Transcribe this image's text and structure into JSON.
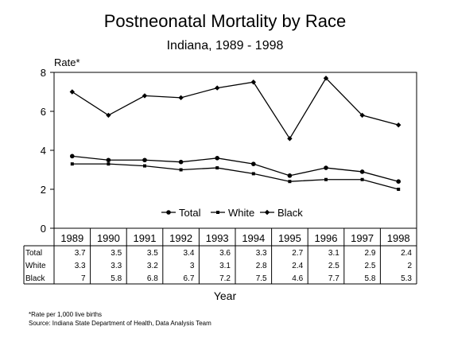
{
  "chart_data": {
    "type": "line",
    "title": "Postneonatal Mortality by Race",
    "subtitle": "Indiana, 1989 - 1998",
    "ylabel": "Rate*",
    "xlabel": "Year",
    "ylim": [
      0,
      8
    ],
    "yticks": [
      0,
      2,
      4,
      6,
      8
    ],
    "grid": false,
    "legend_placement": "bottom-center",
    "categories": [
      "1989",
      "1990",
      "1991",
      "1992",
      "1993",
      "1994",
      "1995",
      "1996",
      "1997",
      "1998"
    ],
    "series": [
      {
        "name": "Total",
        "marker": "circle",
        "values": [
          3.7,
          3.5,
          3.5,
          3.4,
          3.6,
          3.3,
          2.7,
          3.1,
          2.9,
          2.4
        ],
        "labels": [
          "3.7",
          "3.5",
          "3.5",
          "3.4",
          "3.6",
          "3.3",
          "2.7",
          "3.1",
          "2.9",
          "2.4"
        ]
      },
      {
        "name": "White",
        "marker": "square",
        "values": [
          3.3,
          3.3,
          3.2,
          3.0,
          3.1,
          2.8,
          2.4,
          2.5,
          2.5,
          2.0
        ],
        "labels": [
          "3.3",
          "3.3",
          "3.2",
          "3",
          "3.1",
          "2.8",
          "2.4",
          "2.5",
          "2.5",
          "2"
        ]
      },
      {
        "name": "Black",
        "marker": "diamond",
        "values": [
          7.0,
          5.8,
          6.8,
          6.7,
          7.2,
          7.5,
          4.6,
          7.7,
          5.8,
          5.3
        ],
        "labels": [
          "7",
          "5.8",
          "6.8",
          "6.7",
          "7.2",
          "7.5",
          "4.6",
          "7.7",
          "5.8",
          "5.3"
        ]
      }
    ]
  },
  "notes": {
    "footnote": "*Rate per 1,000 live births",
    "source": "Source:  Indiana State Department of Health, Data Analysis Team"
  },
  "colors": {
    "line": "#000000",
    "background": "#ffffff"
  }
}
